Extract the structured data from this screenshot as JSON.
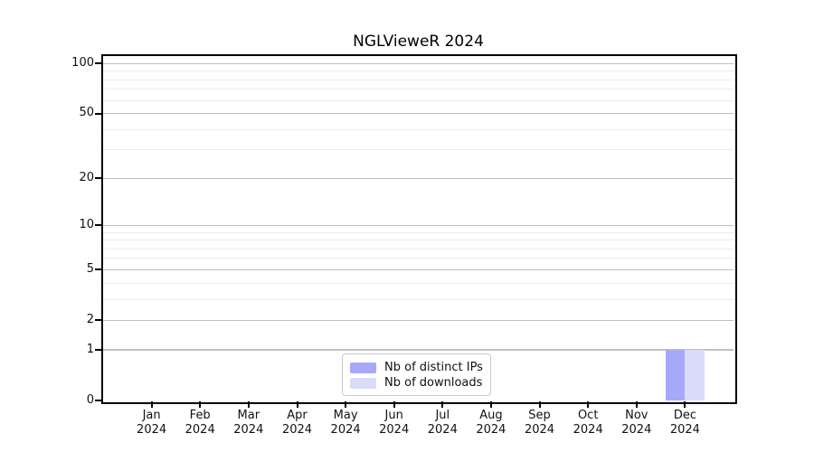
{
  "chart_data": {
    "type": "bar",
    "title": "NGLVieweR 2024",
    "categories": [
      "Jan",
      "Feb",
      "Mar",
      "Apr",
      "May",
      "Jun",
      "Jul",
      "Aug",
      "Sep",
      "Oct",
      "Nov",
      "Dec"
    ],
    "x_tick_year": "2024",
    "series": [
      {
        "name": "Nb of distinct IPs",
        "color": "#a8a8f8",
        "values": [
          0,
          0,
          0,
          0,
          0,
          0,
          0,
          0,
          0,
          0,
          0,
          1
        ]
      },
      {
        "name": "Nb of downloads",
        "color": "#dbdbfa",
        "values": [
          0,
          0,
          0,
          0,
          0,
          0,
          0,
          0,
          0,
          0,
          0,
          1
        ]
      }
    ],
    "y_scale": "log1p",
    "y_ticks": [
      0,
      1,
      2,
      5,
      10,
      20,
      50,
      100
    ],
    "y_minor_gridlines": [
      3,
      4,
      6,
      7,
      8,
      9,
      30,
      40,
      60,
      70,
      80,
      90
    ],
    "ylim": [
      0,
      111
    ],
    "grid": "both",
    "legend_position": "lower center",
    "colors": {
      "grid_major": "#c0c0c0",
      "grid_minor": "#ebebeb",
      "spine": "#000000",
      "tick": "#000000",
      "text": "#111111",
      "legend_border": "#c8c8c8",
      "background": "#ffffff"
    }
  }
}
